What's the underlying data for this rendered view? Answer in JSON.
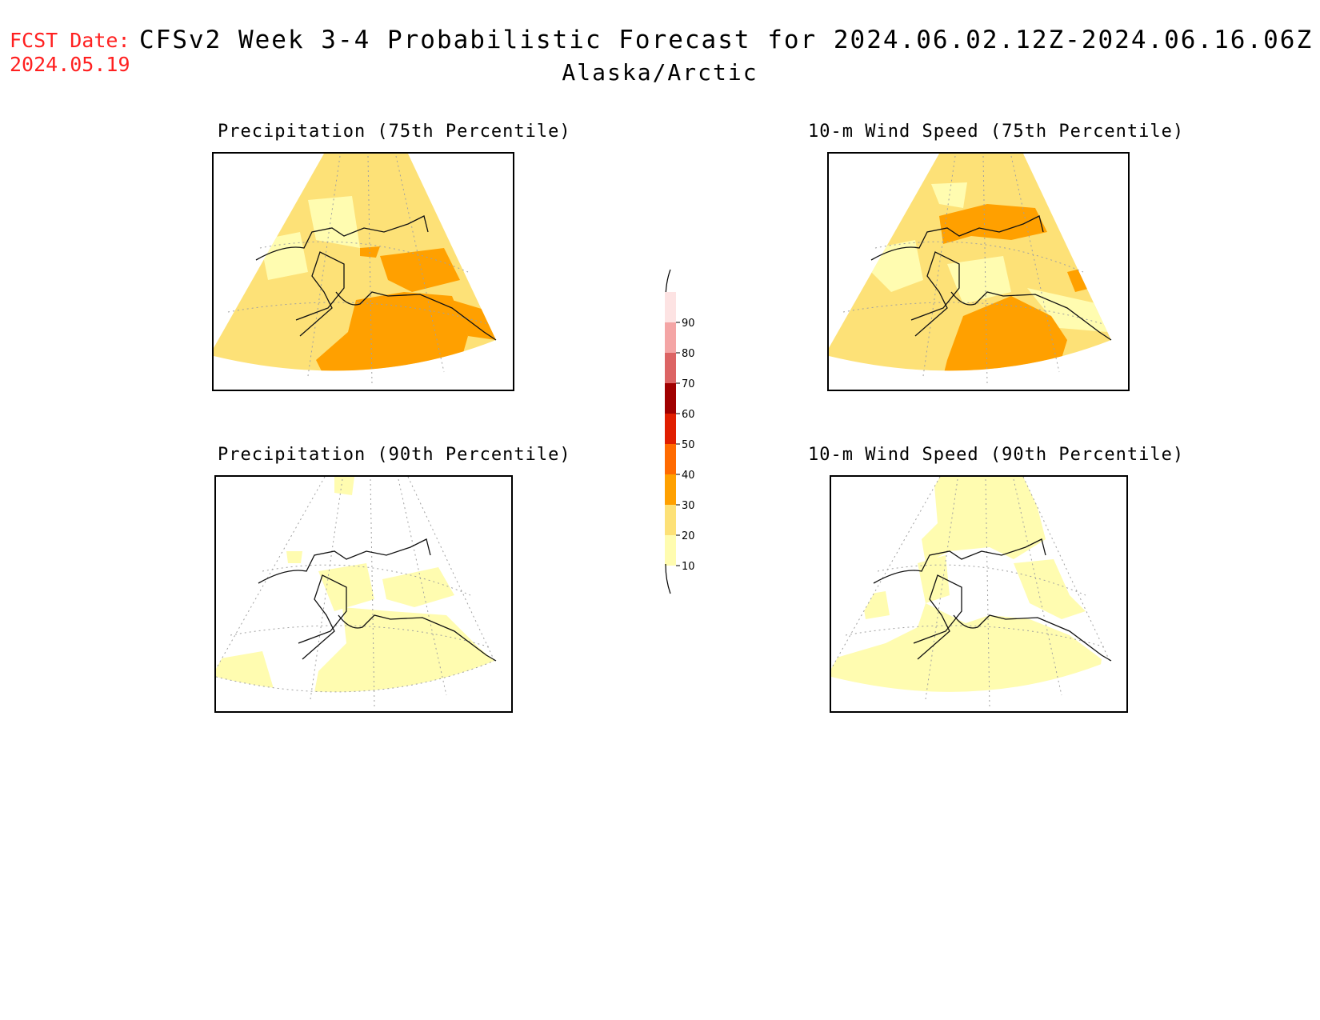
{
  "header": {
    "fcst_label": "FCST Date:",
    "fcst_date": "2024.05.19",
    "title": "CFSv2 Week 3-4 Probabilistic Forecast for 2024.06.02.12Z-2024.06.16.06Z",
    "subtitle": "Alaska/Arctic"
  },
  "panels": [
    {
      "title": "Precipitation (75th Percentile)",
      "dominant_category": "20-30",
      "secondary_category": "30-40"
    },
    {
      "title": "10-m Wind Speed (75th Percentile)",
      "dominant_category": "20-30",
      "secondary_category": "30-40"
    },
    {
      "title": "Precipitation (90th Percentile)",
      "dominant_category": "10-20",
      "secondary_category": "below 10"
    },
    {
      "title": "10-m Wind Speed (90th Percentile)",
      "dominant_category": "10-20",
      "secondary_category": "below 10"
    }
  ],
  "colorbar": {
    "labels": [
      "90",
      "80",
      "70",
      "60",
      "50",
      "40",
      "30",
      "20",
      "10"
    ],
    "colors": {
      "90-100": "#fde3e3",
      "80-90": "#f4a5a5",
      "70-80": "#dc6464",
      "60-70": "#a00000",
      "50-60": "#e01e00",
      "40-50": "#ff6a00",
      "30-40": "#ffa000",
      "20-30": "#fde177",
      "10-20": "#fffcb0",
      "0-10": "#ffffff"
    }
  }
}
